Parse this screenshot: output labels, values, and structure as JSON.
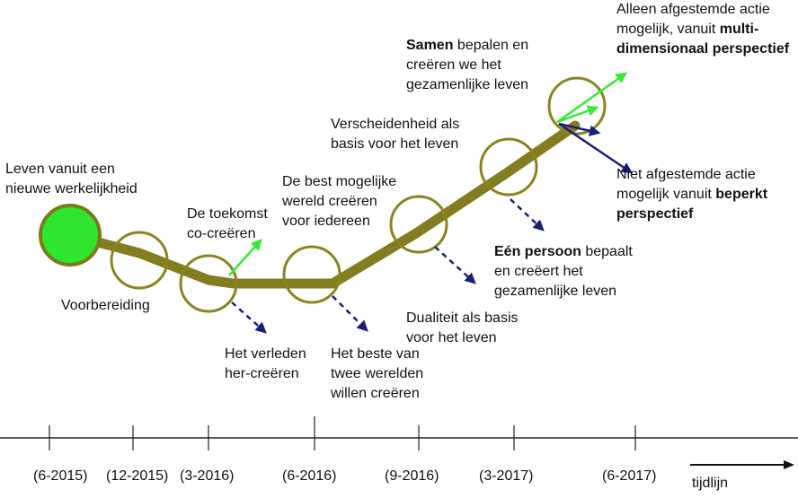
{
  "diagram": {
    "labels": {
      "start": [
        "Leven vanuit een",
        "nieuwe werkelijkheid"
      ],
      "voorbereiding": "Voorbereiding",
      "toekomst": [
        "De toekomst",
        "co-creëren"
      ],
      "verleden": [
        "Het verleden",
        "her-creëren"
      ],
      "best_mogelijke": [
        "De best mogelijke",
        "wereld creëren",
        "voor iedereen"
      ],
      "beste_twee": [
        "Het beste van",
        "twee werelden",
        "willen creëren"
      ],
      "verscheidenheid": [
        "Verscheidenheid als",
        "basis voor het leven"
      ],
      "dualiteit": [
        "Dualiteit als basis",
        "voor het leven"
      ],
      "samen_bold": "Samen",
      "samen_rest": " bepalen  en",
      "samen_lines": [
        "creëren we het",
        "gezamenlijke leven"
      ],
      "een_persoon_bold": "Eén persoon",
      "een_persoon_rest": " bepaalt",
      "een_persoon_lines": [
        "en creëert het",
        "gezamenlijke leven"
      ],
      "alleen_line1": "Alleen afgestemde actie",
      "alleen_line2_plain": "mogelijk, vanuit ",
      "alleen_line2_bold": "multi-",
      "alleen_line3_bold": "dimensionaal perspectief",
      "niet_line1": "Niet afgestemde actie",
      "niet_line2_plain": "mogelijk vanuit ",
      "niet_line2_bold": "beperkt",
      "niet_line3_bold": "perspectief"
    },
    "timeline": {
      "dates": [
        "(6-2015)",
        "(12-2015)",
        "(3-2016)",
        "(6-2016)",
        "(9-2016)",
        "(3-2017)",
        "(6-2017)"
      ],
      "axis_label": "tijdlijn"
    },
    "colors": {
      "path": "#827d1f",
      "circle_stroke": "#8a8420",
      "start_fill": "#2ee62e",
      "start_stroke": "#7d7a1e",
      "up_arrow": "#33ee33",
      "down_arrow": "#1a1e7a",
      "axis": "#222222"
    }
  }
}
